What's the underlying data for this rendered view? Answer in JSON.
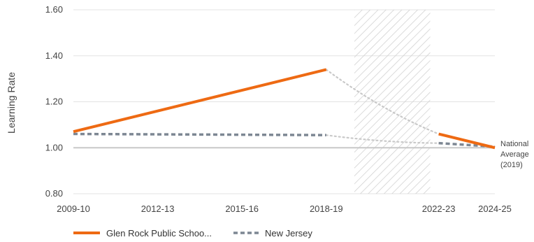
{
  "chart_data": {
    "type": "line",
    "ylabel": "Learning Rate",
    "ylim": [
      0.8,
      1.6
    ],
    "yticks": [
      "0.80",
      "1.00",
      "1.20",
      "1.40",
      "1.60"
    ],
    "xticks": [
      "2009-10",
      "2012-13",
      "2015-16",
      "2018-19",
      "2022-23",
      "2024-25"
    ],
    "reference_line": {
      "value": 1.0,
      "label_lines": [
        "National",
        "Average",
        "(2019)"
      ]
    },
    "shaded_region": {
      "from": 2019.0,
      "to": 2021.7,
      "pattern": "diagonal-hatch"
    },
    "series": [
      {
        "name": "Glen Rock Public Schoo...",
        "color": "#ee6a13",
        "style": "solid",
        "segments": [
          {
            "x": [
              2009.0,
              2018.0
            ],
            "y": [
              1.07,
              1.34
            ]
          },
          {
            "x": [
              2022.0,
              2024.0
            ],
            "y": [
              1.06,
              1.0
            ]
          }
        ],
        "gap": {
          "x": [
            2018.0,
            2020.0,
            2022.0
          ],
          "y": [
            1.34,
            1.18,
            1.06
          ]
        }
      },
      {
        "name": "New Jersey",
        "color": "#7d8793",
        "style": "dashed",
        "segments": [
          {
            "x": [
              2009.0,
              2018.0
            ],
            "y": [
              1.06,
              1.055
            ]
          },
          {
            "x": [
              2022.0,
              2024.0
            ],
            "y": [
              1.02,
              1.005
            ]
          }
        ],
        "gap": {
          "x": [
            2018.0,
            2020.0,
            2022.0
          ],
          "y": [
            1.055,
            1.03,
            1.02
          ]
        }
      }
    ],
    "grid": true,
    "legend": "bottom-left",
    "colors": {
      "grid": "#e3e3e3",
      "reference": "#c8c8c8",
      "gap": "#c9c9c9",
      "hatch": "#cfcfcf"
    }
  }
}
